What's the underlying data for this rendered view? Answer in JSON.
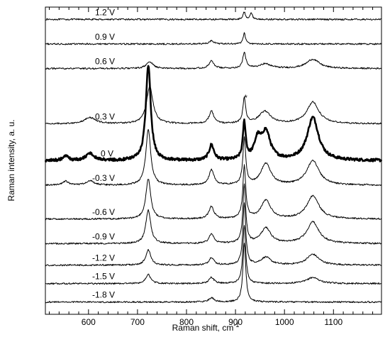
{
  "chart_data": {
    "type": "line",
    "title": "",
    "xlabel": "Raman shift, cm",
    "xlabel_superscript": "-1",
    "ylabel": "Raman intensity, a. u.",
    "xlim": [
      512,
      1198
    ],
    "xticks": [
      600,
      700,
      800,
      900,
      1000,
      1100
    ],
    "xtick_labels": [
      "600",
      "700",
      "800",
      "900",
      "1000",
      "1100"
    ],
    "y_units": "arbitrary (stacked offsets)",
    "grid": false,
    "legend": "none",
    "annotations": [
      {
        "text": "*",
        "x": 918
      }
    ],
    "series": [
      {
        "label": "1.2 V",
        "baseline": 96,
        "peaks": [
          [
            918,
            2.3,
            3
          ],
          [
            932,
            2.1,
            3
          ]
        ]
      },
      {
        "label": "0.9 V",
        "baseline": 88,
        "peaks": [
          [
            851,
            1.0,
            6
          ],
          [
            918,
            3.5,
            3
          ]
        ]
      },
      {
        "label": "0.6 V",
        "baseline": 80,
        "peaks": [
          [
            725,
            2.2,
            8
          ],
          [
            851,
            2.4,
            6
          ],
          [
            918,
            5.0,
            4
          ],
          [
            960,
            1.5,
            15
          ],
          [
            1058,
            3.0,
            16
          ]
        ]
      },
      {
        "label": "0.3 V",
        "baseline": 62,
        "peaks": [
          [
            603,
            2.0,
            14
          ],
          [
            725,
            12.0,
            8
          ],
          [
            851,
            4.0,
            6
          ],
          [
            918,
            8.0,
            3.5
          ],
          [
            960,
            4.0,
            14
          ],
          [
            1058,
            7.0,
            15
          ]
        ]
      },
      {
        "label": "0 V",
        "baseline": 50,
        "bold": true,
        "peaks": [
          [
            553,
            1.4,
            7
          ],
          [
            603,
            2.5,
            9
          ],
          [
            722,
            31.0,
            6
          ],
          [
            851,
            5.0,
            6
          ],
          [
            918,
            12.0,
            3.5
          ],
          [
            945,
            6.0,
            8
          ],
          [
            962,
            9.0,
            11
          ],
          [
            1058,
            14.0,
            14
          ]
        ]
      },
      {
        "label": "-0.3 V",
        "baseline": 42,
        "peaks": [
          [
            553,
            1.3,
            7
          ],
          [
            603,
            1.5,
            9
          ],
          [
            722,
            18.0,
            6
          ],
          [
            851,
            5.0,
            6
          ],
          [
            918,
            15.0,
            3.5
          ],
          [
            962,
            7.0,
            12
          ],
          [
            1058,
            8.0,
            15
          ]
        ]
      },
      {
        "label": "-0.6 V",
        "baseline": 31,
        "peaks": [
          [
            722,
            13.0,
            6
          ],
          [
            851,
            4.0,
            6
          ],
          [
            918,
            17.0,
            3.5
          ],
          [
            962,
            6.0,
            12
          ],
          [
            1058,
            7.5,
            15
          ]
        ]
      },
      {
        "label": "-0.9 V",
        "baseline": 23,
        "peaks": [
          [
            722,
            11.0,
            6
          ],
          [
            851,
            3.0,
            6
          ],
          [
            918,
            19.0,
            3.5
          ],
          [
            962,
            5.0,
            12
          ],
          [
            1058,
            7.0,
            15
          ]
        ]
      },
      {
        "label": "-1.2 V",
        "baseline": 16,
        "peaks": [
          [
            722,
            5.0,
            6
          ],
          [
            851,
            2.5,
            6
          ],
          [
            918,
            20.0,
            3.5
          ],
          [
            962,
            2.5,
            12
          ],
          [
            1058,
            3.5,
            15
          ]
        ]
      },
      {
        "label": "-1.5 V",
        "baseline": 10,
        "peaks": [
          [
            722,
            3.0,
            6
          ],
          [
            851,
            2.0,
            6
          ],
          [
            918,
            19.0,
            3.5
          ],
          [
            1058,
            2.0,
            15
          ]
        ]
      },
      {
        "label": "-1.8 V",
        "baseline": 4,
        "peaks": [
          [
            851,
            1.4,
            6
          ],
          [
            918,
            19.0,
            3.5
          ]
        ]
      }
    ]
  }
}
